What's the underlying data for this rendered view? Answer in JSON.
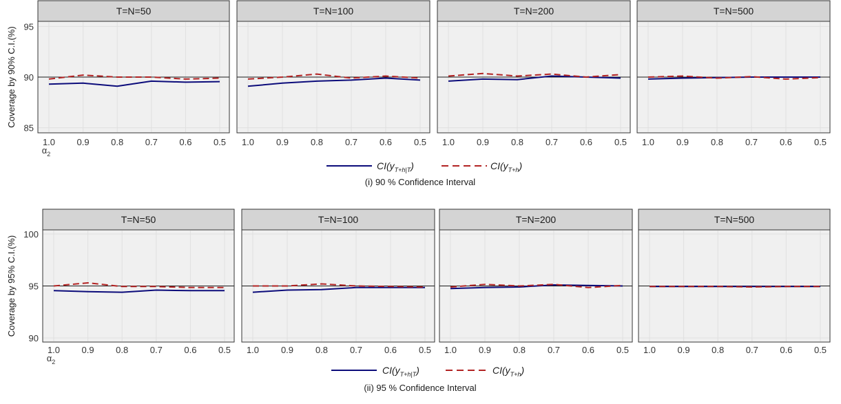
{
  "chart_data": [
    {
      "type": "line",
      "caption": "(i) 90 % Confidence Interval",
      "ylabel": "Coverage by 90% C.I.(%)",
      "xlabel": "α2",
      "xlabel_parts": {
        "base": "α",
        "sub": "2"
      },
      "x": [
        "1.0",
        "0.9",
        "0.8",
        "0.7",
        "0.6",
        "0.5"
      ],
      "ylim": [
        84.5,
        95.5
      ],
      "yticks": [
        "85",
        "90",
        "95"
      ],
      "reference_line": 90,
      "grid": true,
      "legend": "bottom",
      "panels": [
        {
          "title": "T=N=50",
          "series": [
            {
              "name": "CI(yT+h|T)",
              "values": [
                89.3,
                89.4,
                89.1,
                89.6,
                89.5,
                89.55
              ]
            },
            {
              "name": "CI(yT+h)",
              "values": [
                89.8,
                90.2,
                90.0,
                90.0,
                89.8,
                89.9
              ]
            }
          ]
        },
        {
          "title": "T=N=100",
          "series": [
            {
              "name": "CI(yT+h|T)",
              "values": [
                89.1,
                89.4,
                89.6,
                89.7,
                89.9,
                89.7
              ]
            },
            {
              "name": "CI(yT+h)",
              "values": [
                89.8,
                90.0,
                90.3,
                89.9,
                90.1,
                89.9
              ]
            }
          ]
        },
        {
          "title": "T=N=200",
          "series": [
            {
              "name": "CI(yT+h|T)",
              "values": [
                89.6,
                89.8,
                89.75,
                90.1,
                90.0,
                89.9
              ]
            },
            {
              "name": "CI(yT+h)",
              "values": [
                90.1,
                90.35,
                90.1,
                90.3,
                90.0,
                90.25
              ]
            }
          ]
        },
        {
          "title": "T=N=500",
          "series": [
            {
              "name": "CI(yT+h|T)",
              "values": [
                89.8,
                89.9,
                89.95,
                90.0,
                90.0,
                90.0
              ]
            },
            {
              "name": "CI(yT+h)",
              "values": [
                90.0,
                90.1,
                89.9,
                90.05,
                89.8,
                89.95
              ]
            }
          ]
        }
      ]
    },
    {
      "type": "line",
      "caption": "(ii) 95 % Confidence Interval",
      "ylabel": "Coverage by 95% C.I.(%)",
      "xlabel": "α2",
      "xlabel_parts": {
        "base": "α",
        "sub": "2"
      },
      "x": [
        "1.0",
        "0.9",
        "0.8",
        "0.7",
        "0.6",
        "0.5"
      ],
      "ylim": [
        89.6,
        100.4
      ],
      "yticks": [
        "90",
        "95",
        "100"
      ],
      "reference_line": 95,
      "grid": true,
      "legend": "bottom",
      "panels": [
        {
          "title": "T=N=50",
          "series": [
            {
              "name": "CI(yT+h|T)",
              "values": [
                94.55,
                94.45,
                94.4,
                94.6,
                94.55,
                94.55
              ]
            },
            {
              "name": "CI(yT+h)",
              "values": [
                95.0,
                95.3,
                94.95,
                94.95,
                94.85,
                94.85
              ]
            }
          ]
        },
        {
          "title": "T=N=100",
          "series": [
            {
              "name": "CI(yT+h|T)",
              "values": [
                94.4,
                94.6,
                94.65,
                94.85,
                94.85,
                94.85
              ]
            },
            {
              "name": "CI(yT+h)",
              "values": [
                95.0,
                95.0,
                95.2,
                95.0,
                94.95,
                94.9
              ]
            }
          ]
        },
        {
          "title": "T=N=200",
          "series": [
            {
              "name": "CI(yT+h|T)",
              "values": [
                94.75,
                94.85,
                94.9,
                95.1,
                95.05,
                95.0
              ]
            },
            {
              "name": "CI(yT+h)",
              "values": [
                94.9,
                95.15,
                95.0,
                95.15,
                94.85,
                95.05
              ]
            }
          ]
        },
        {
          "title": "T=N=500",
          "series": [
            {
              "name": "CI(yT+h|T)",
              "values": [
                94.95,
                94.95,
                94.95,
                94.95,
                94.95,
                94.95
              ]
            },
            {
              "name": "CI(yT+h)",
              "values": [
                94.95,
                94.95,
                94.95,
                94.9,
                94.95,
                94.95
              ]
            }
          ]
        }
      ]
    }
  ],
  "legend_labels": {
    "solid": {
      "prefix": "CI(",
      "var": "y",
      "sub": "T+h|T",
      "suffix": ")"
    },
    "dashed": {
      "prefix": "CI(",
      "var": "y",
      "sub": "T+h",
      "suffix": ")"
    }
  },
  "colors": {
    "solid_series": "#0b0b7a",
    "dashed_series": "#b22222",
    "panel_bg": "#f0f0f0",
    "strip_bg": "#d4d4d4",
    "grid": "#e0e0e0",
    "reference": "#1a1a1a",
    "text": "#333333"
  }
}
